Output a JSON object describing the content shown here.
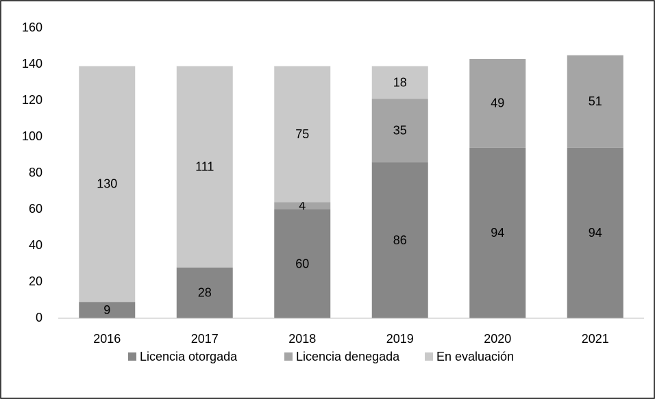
{
  "chart_data": {
    "type": "stacked_bar",
    "categories": [
      "2016",
      "2017",
      "2018",
      "2019",
      "2020",
      "2021"
    ],
    "series": [
      {
        "name": "Licencia otorgada",
        "color": "#878787",
        "values": [
          9,
          28,
          60,
          86,
          94,
          94
        ]
      },
      {
        "name": "Licencia denegada",
        "color": "#a5a5a5",
        "values": [
          null,
          null,
          4,
          35,
          49,
          51
        ]
      },
      {
        "name": "En evaluación",
        "color": "#c9c9c9",
        "values": [
          130,
          111,
          75,
          18,
          null,
          null
        ]
      }
    ],
    "ylim": [
      0,
      160
    ],
    "yticks": [
      0,
      20,
      40,
      60,
      80,
      100,
      120,
      140,
      160
    ],
    "grid": false,
    "legend": "bottom"
  }
}
